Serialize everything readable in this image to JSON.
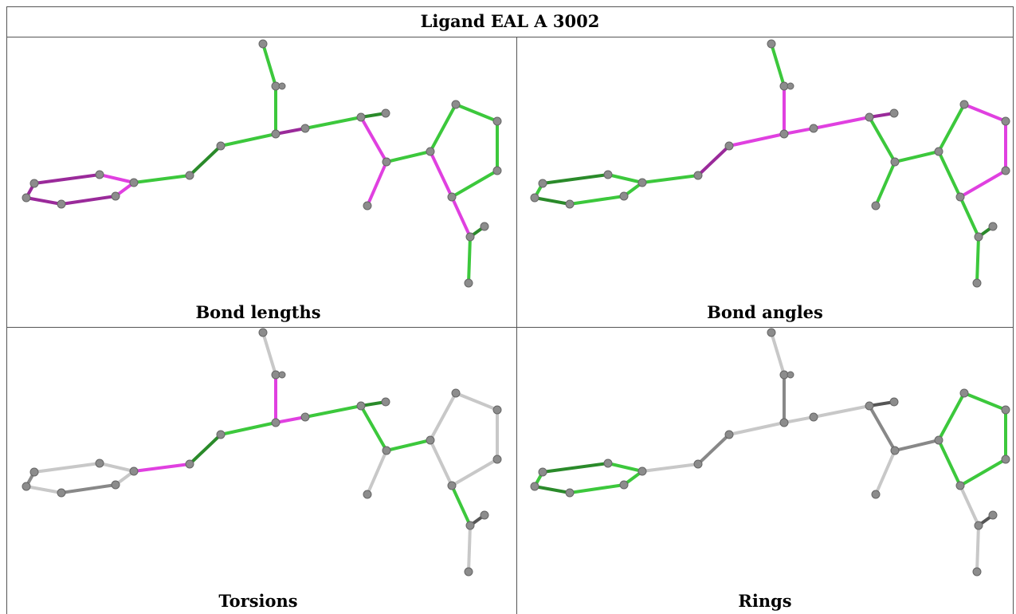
{
  "header": {
    "title": "Ligand EAL A 3002"
  },
  "panels": [
    {
      "label": "Bond lengths"
    },
    {
      "label": "Bond angles"
    },
    {
      "label": "Torsions"
    },
    {
      "label": "Rings"
    }
  ]
}
